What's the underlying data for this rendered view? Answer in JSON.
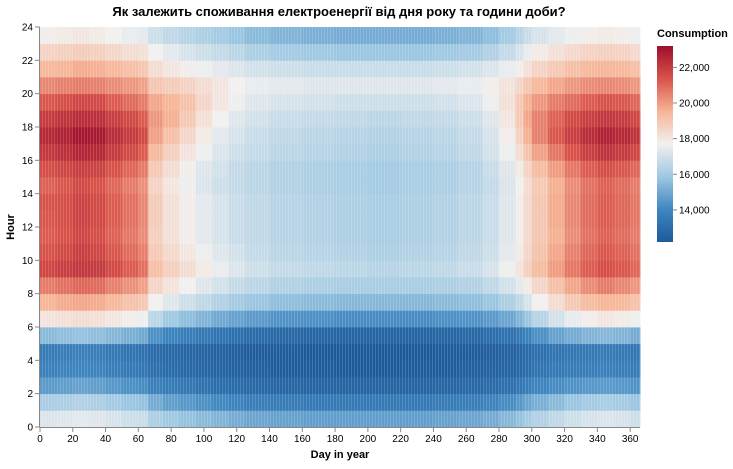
{
  "chart_data": {
    "type": "heatmap",
    "title": "Як залежить споживання електроенергії від дня року та години доби?",
    "xlabel": "Day in year",
    "ylabel": "Hour",
    "xlim": [
      0,
      366
    ],
    "ylim": [
      0,
      24
    ],
    "x_ticks": [
      0,
      20,
      40,
      60,
      80,
      100,
      120,
      140,
      160,
      180,
      200,
      220,
      240,
      260,
      280,
      300,
      320,
      340,
      360
    ],
    "y_ticks": [
      0,
      2,
      4,
      6,
      8,
      10,
      12,
      14,
      16,
      18,
      20,
      22,
      24
    ],
    "legend": {
      "title": "Consumption",
      "min": 12200,
      "max": 23200,
      "ticks": [
        14000,
        16000,
        18000,
        20000,
        22000
      ],
      "tick_labels": [
        "14,000",
        "16,000",
        "18,000",
        "20,000",
        "22,000"
      ],
      "placement": "right"
    },
    "color_scale": {
      "scheme": "blue-white-red",
      "stops": [
        "#1d5a9a",
        "#3f86c0",
        "#9ec8e2",
        "#f2f0ef",
        "#f6b597",
        "#d9534a",
        "#9e0f2c"
      ]
    },
    "x_bins": [
      0,
      10,
      20,
      30,
      40,
      50,
      60,
      66,
      75,
      85,
      95,
      105,
      115,
      125,
      140,
      160,
      180,
      200,
      220,
      240,
      255,
      270,
      280,
      290,
      295,
      300,
      310,
      320,
      330,
      340,
      350,
      360,
      366
    ],
    "hours": [
      0,
      1,
      2,
      3,
      4,
      5,
      6,
      7,
      8,
      9,
      10,
      11,
      12,
      13,
      14,
      15,
      16,
      17,
      18,
      19,
      20,
      21,
      22,
      23
    ],
    "values": [
      [
        17200,
        16100,
        14600,
        13800,
        13600,
        15500,
        18100,
        19500,
        20600,
        21700,
        21400,
        21200,
        21300,
        21400,
        21100,
        21500,
        22100,
        22500,
        22000,
        21300,
        20400,
        19400,
        18600,
        17800
      ],
      [
        17300,
        16200,
        14700,
        13900,
        13700,
        15600,
        18200,
        19700,
        20800,
        21900,
        21600,
        21400,
        21500,
        21500,
        21300,
        21700,
        22300,
        22700,
        22200,
        21500,
        20500,
        19500,
        18700,
        17900
      ],
      [
        17400,
        16300,
        14800,
        14000,
        13800,
        15700,
        18300,
        19800,
        21000,
        22100,
        21900,
        21700,
        21800,
        21800,
        21600,
        21900,
        22600,
        23000,
        22400,
        21700,
        20600,
        19700,
        18800,
        18000
      ],
      [
        17300,
        16200,
        14700,
        13900,
        13700,
        15600,
        18200,
        19700,
        20900,
        22000,
        21700,
        21500,
        21600,
        21600,
        21400,
        21800,
        22500,
        22900,
        22300,
        21600,
        20500,
        19600,
        18700,
        17900
      ],
      [
        17100,
        16000,
        14500,
        13700,
        13500,
        15400,
        18000,
        19400,
        20500,
        21600,
        21300,
        21100,
        21200,
        21200,
        21000,
        21400,
        22000,
        22400,
        21900,
        21200,
        20300,
        19400,
        18500,
        17700
      ],
      [
        16900,
        15800,
        14300,
        13500,
        13300,
        15200,
        17800,
        19100,
        20200,
        21200,
        20900,
        20700,
        20800,
        20800,
        20600,
        21000,
        21600,
        22000,
        21600,
        20900,
        20100,
        19200,
        18300,
        17500
      ],
      [
        16800,
        15700,
        14200,
        13400,
        13200,
        15000,
        17600,
        18900,
        19900,
        20800,
        20500,
        20300,
        20400,
        20400,
        20200,
        20600,
        21200,
        21600,
        21200,
        20600,
        19900,
        19000,
        18200,
        17400
      ],
      [
        16200,
        15100,
        13800,
        13100,
        12900,
        14300,
        16500,
        17700,
        18500,
        19200,
        18900,
        18700,
        18800,
        18800,
        18600,
        18900,
        19400,
        19900,
        20100,
        19800,
        19000,
        18300,
        17700,
        16900
      ],
      [
        15900,
        14700,
        13600,
        12900,
        12800,
        13900,
        15900,
        17300,
        18100,
        18700,
        18400,
        18200,
        18200,
        18200,
        18000,
        18300,
        18700,
        19200,
        19600,
        19500,
        18800,
        18000,
        17400,
        16600
      ],
      [
        15700,
        14500,
        13400,
        12800,
        12700,
        13700,
        15600,
        16900,
        17700,
        18300,
        18000,
        17800,
        17800,
        17800,
        17600,
        17800,
        18100,
        18500,
        18900,
        19100,
        18600,
        17800,
        17100,
        16400
      ],
      [
        15500,
        14300,
        13200,
        12700,
        12600,
        13500,
        15300,
        16600,
        17300,
        17900,
        17600,
        17400,
        17400,
        17400,
        17200,
        17300,
        17600,
        17900,
        18200,
        18500,
        18300,
        17600,
        16900,
        16200
      ],
      [
        15300,
        14100,
        13000,
        12600,
        12500,
        13300,
        15000,
        16300,
        17000,
        17500,
        17300,
        17100,
        17100,
        17100,
        16900,
        17000,
        17200,
        17400,
        17700,
        18000,
        18000,
        17400,
        16700,
        16000
      ],
      [
        15100,
        13900,
        12900,
        12500,
        12400,
        13100,
        14800,
        16000,
        16700,
        17200,
        17000,
        16800,
        16800,
        16800,
        16700,
        16700,
        16900,
        17100,
        17300,
        17600,
        17700,
        17200,
        16500,
        15800
      ],
      [
        14900,
        13700,
        12800,
        12400,
        12300,
        12900,
        14600,
        15800,
        16500,
        16900,
        16700,
        16600,
        16600,
        16600,
        16500,
        16500,
        16700,
        16800,
        17000,
        17300,
        17500,
        17000,
        16200,
        15500
      ],
      [
        14800,
        13600,
        12700,
        12300,
        12300,
        12800,
        14400,
        15600,
        16300,
        16700,
        16500,
        16400,
        16400,
        16400,
        16300,
        16300,
        16500,
        16600,
        16800,
        17100,
        17400,
        16900,
        16000,
        15300
      ],
      [
        14700,
        13500,
        12600,
        12300,
        12200,
        12700,
        14300,
        15500,
        16200,
        16600,
        16400,
        16300,
        16300,
        16300,
        16200,
        16200,
        16400,
        16500,
        16700,
        17000,
        17300,
        16800,
        15900,
        15200
      ],
      [
        14700,
        13500,
        12600,
        12200,
        12200,
        12600,
        14200,
        15400,
        16100,
        16500,
        16300,
        16200,
        16200,
        16200,
        16100,
        16100,
        16300,
        16400,
        16600,
        16900,
        17300,
        16800,
        15800,
        15100
      ],
      [
        14700,
        13500,
        12600,
        12200,
        12200,
        12600,
        14200,
        15400,
        16100,
        16400,
        16200,
        16100,
        16100,
        16100,
        16000,
        16000,
        16200,
        16300,
        16500,
        16900,
        17300,
        16800,
        15800,
        15100
      ],
      [
        14700,
        13500,
        12600,
        12300,
        12200,
        12600,
        14200,
        15400,
        16100,
        16500,
        16300,
        16200,
        16200,
        16200,
        16100,
        16100,
        16300,
        16400,
        16600,
        16900,
        17300,
        16800,
        15800,
        15100
      ],
      [
        14800,
        13600,
        12700,
        12300,
        12300,
        12700,
        14300,
        15500,
        16200,
        16600,
        16400,
        16300,
        16300,
        16300,
        16200,
        16200,
        16400,
        16500,
        16700,
        17000,
        17400,
        16900,
        15900,
        15200
      ],
      [
        14900,
        13700,
        12800,
        12400,
        12300,
        12800,
        14400,
        15600,
        16300,
        16800,
        16600,
        16500,
        16500,
        16500,
        16400,
        16400,
        16600,
        16700,
        16900,
        17200,
        17500,
        17000,
        16000,
        15300
      ],
      [
        15100,
        13900,
        12900,
        12500,
        12400,
        13000,
        14600,
        15800,
        16600,
        17100,
        16900,
        16800,
        16800,
        16800,
        16700,
        16800,
        17000,
        17100,
        17300,
        17600,
        17800,
        17200,
        16300,
        15600
      ],
      [
        15400,
        14200,
        13100,
        12600,
        12500,
        13200,
        14900,
        16200,
        17000,
        17600,
        17400,
        17300,
        17300,
        17300,
        17200,
        17300,
        17600,
        17800,
        18000,
        18200,
        18100,
        17500,
        16700,
        16000
      ],
      [
        15700,
        14500,
        13400,
        12800,
        12700,
        13500,
        15300,
        16600,
        17400,
        18100,
        17900,
        17800,
        17800,
        17800,
        17700,
        17900,
        18300,
        18700,
        18900,
        18900,
        18500,
        17800,
        17100,
        16400
      ],
      [
        16000,
        14900,
        13700,
        13000,
        12900,
        13900,
        15800,
        17100,
        17900,
        18700,
        18500,
        18400,
        18400,
        18400,
        18300,
        18600,
        19100,
        19600,
        19800,
        19600,
        19000,
        18200,
        17500,
        16800
      ],
      [
        16300,
        15200,
        14000,
        13300,
        13100,
        14300,
        16400,
        17700,
        18500,
        19300,
        19100,
        19000,
        19000,
        19000,
        18900,
        19300,
        19900,
        20500,
        20500,
        20100,
        19400,
        18600,
        17900,
        17100
      ],
      [
        16600,
        15500,
        14200,
        13500,
        13300,
        14800,
        17000,
        18300,
        19200,
        20000,
        19800,
        19600,
        19700,
        19700,
        19600,
        20000,
        20700,
        21300,
        21100,
        20600,
        19800,
        18900,
        18200,
        17400
      ],
      [
        16900,
        15800,
        14400,
        13600,
        13400,
        15100,
        17500,
        18900,
        19800,
        20700,
        20500,
        20300,
        20400,
        20400,
        20300,
        20700,
        21400,
        21900,
        21600,
        20900,
        20100,
        19200,
        18400,
        17600
      ],
      [
        17100,
        16000,
        14500,
        13700,
        13500,
        15300,
        17800,
        19300,
        20300,
        21200,
        21000,
        20800,
        20900,
        20900,
        20800,
        21200,
        21900,
        22400,
        21900,
        21200,
        20300,
        19400,
        18600,
        17800
      ],
      [
        17200,
        16100,
        14600,
        13800,
        13600,
        15400,
        18000,
        19500,
        20600,
        21500,
        21300,
        21100,
        21200,
        21200,
        21100,
        21500,
        22200,
        22700,
        22100,
        21400,
        20400,
        19500,
        18700,
        17900
      ],
      [
        17100,
        16000,
        14500,
        13700,
        13500,
        15300,
        17900,
        19400,
        20400,
        21300,
        21100,
        20900,
        21000,
        21000,
        20900,
        21300,
        22000,
        22500,
        22000,
        21300,
        20300,
        19400,
        18600,
        17800
      ],
      [
        16900,
        15800,
        14400,
        13600,
        13400,
        15100,
        17600,
        19100,
        20100,
        21000,
        20800,
        20600,
        20700,
        20700,
        20600,
        21000,
        21700,
        22200,
        21700,
        21000,
        20100,
        19200,
        18400,
        17600
      ]
    ]
  }
}
